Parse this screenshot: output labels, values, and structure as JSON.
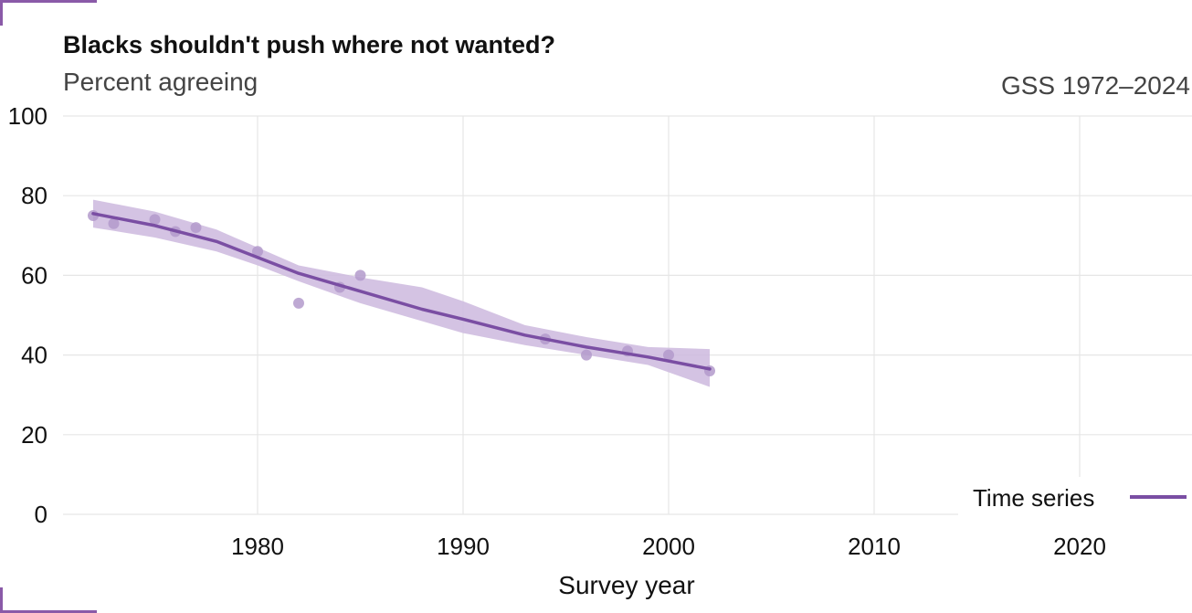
{
  "header": {
    "title": "Blacks shouldn't push where not wanted?",
    "subtitle": "Percent agreeing",
    "source": "GSS 1972–2024"
  },
  "legend": {
    "label": "Time series"
  },
  "colors": {
    "accent": "#7a4ea3",
    "band": "#cdb8de",
    "points": "#b39acb",
    "grid": "#e6e6e6",
    "frame": "#8a5aa8"
  },
  "chart_data": {
    "type": "scatter",
    "title": "Blacks shouldn't push where not wanted?",
    "subtitle": "Percent agreeing",
    "xlabel": "Survey year",
    "ylabel": "",
    "xlim": [
      1971,
      2025
    ],
    "ylim": [
      0,
      100
    ],
    "x_ticks": [
      1980,
      1990,
      2000,
      2010,
      2020
    ],
    "y_ticks": [
      0,
      20,
      40,
      60,
      80,
      100
    ],
    "grid": true,
    "legend_position": "bottom-right",
    "points": [
      {
        "x": 1972,
        "y": 75
      },
      {
        "x": 1973,
        "y": 73
      },
      {
        "x": 1975,
        "y": 74
      },
      {
        "x": 1976,
        "y": 71
      },
      {
        "x": 1977,
        "y": 72
      },
      {
        "x": 1980,
        "y": 66
      },
      {
        "x": 1982,
        "y": 53
      },
      {
        "x": 1984,
        "y": 57
      },
      {
        "x": 1985,
        "y": 60
      },
      {
        "x": 1994,
        "y": 44
      },
      {
        "x": 1996,
        "y": 40
      },
      {
        "x": 1998,
        "y": 41
      },
      {
        "x": 2000,
        "y": 40
      },
      {
        "x": 2002,
        "y": 36
      }
    ],
    "trend": {
      "name": "Time series",
      "x": [
        1972,
        1975,
        1978,
        1980,
        1982,
        1985,
        1988,
        1990,
        1993,
        1996,
        1999,
        2002
      ],
      "y": [
        75.5,
        72.5,
        68.5,
        64.5,
        60.5,
        56.0,
        51.5,
        49.0,
        45.0,
        42.0,
        39.5,
        36.5
      ],
      "lower": [
        72.0,
        69.5,
        66.0,
        62.5,
        58.5,
        53.0,
        48.5,
        45.5,
        42.5,
        40.0,
        37.5,
        32.0
      ],
      "upper": [
        79.0,
        76.0,
        71.5,
        67.0,
        62.5,
        59.5,
        57.0,
        53.5,
        47.5,
        44.5,
        42.0,
        41.5
      ]
    }
  }
}
